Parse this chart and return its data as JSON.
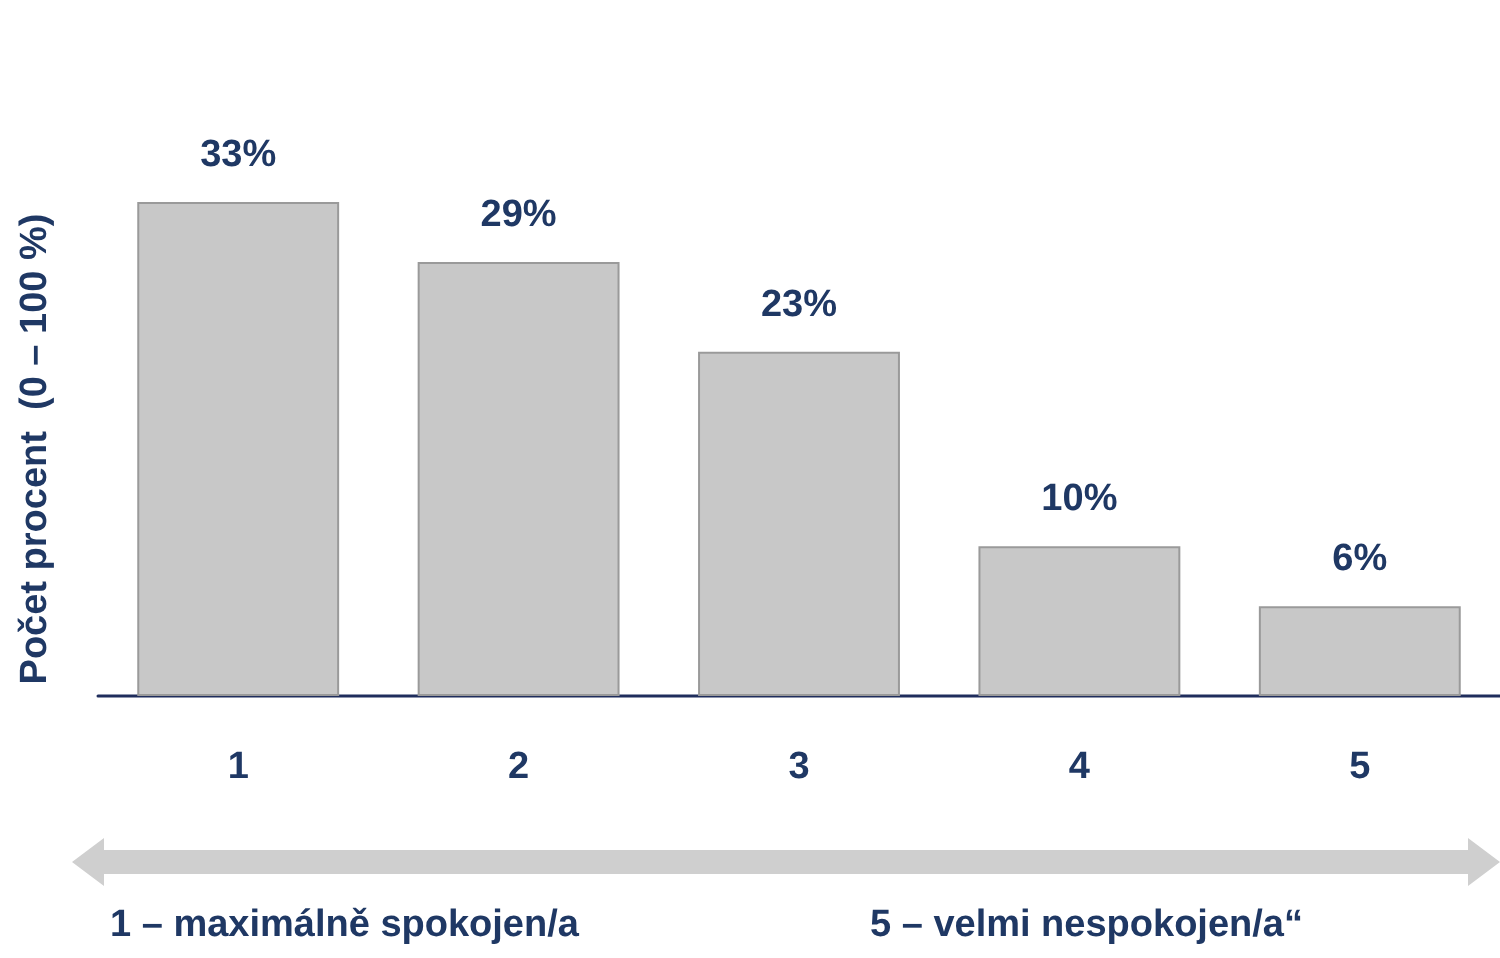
{
  "chart_data": {
    "type": "bar",
    "ylabel": "Počet procent  (0 – 100 %)",
    "categories": [
      "1",
      "2",
      "3",
      "4",
      "5"
    ],
    "values": [
      33,
      29,
      23,
      10,
      6
    ],
    "value_labels": [
      "33%",
      "29%",
      "23%",
      "10%",
      "6%"
    ],
    "color": "#c8c8c8",
    "grid": false,
    "annotations": [
      "1 – maximálně spokojen/a",
      "5 – velmi nespokojen/a“"
    ]
  }
}
